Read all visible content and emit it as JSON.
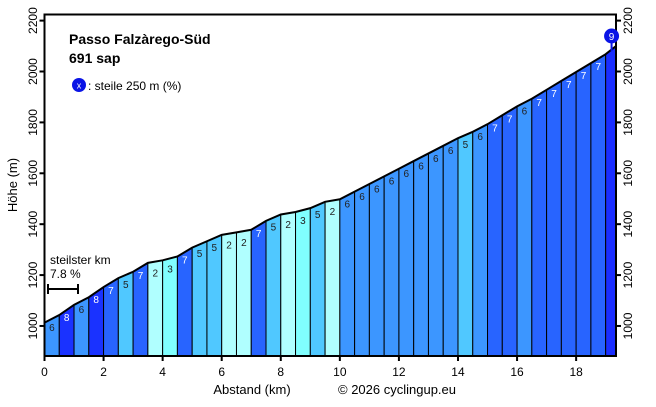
{
  "chart_data": {
    "type": "area",
    "title": "Passo Falzàrego-Süd",
    "subtitle": "691 sap",
    "xlabel": "Abstand (km)",
    "ylabel": "Höhe (m)",
    "credit": "© 2026 cyclingup.eu",
    "xlim": [
      0,
      19.35
    ],
    "ylim": [
      882,
      2224
    ],
    "x_ticks": [
      0,
      2,
      4,
      6,
      8,
      10,
      12,
      14,
      16,
      18
    ],
    "y_ticks": [
      1000,
      1200,
      1400,
      1600,
      1800,
      2000,
      2200
    ],
    "grid": false,
    "distances_km": [
      0,
      0.5,
      1,
      1.5,
      2,
      2.5,
      3,
      3.5,
      4,
      4.5,
      5,
      5.5,
      6,
      6.5,
      7,
      7.5,
      8,
      8.5,
      9,
      9.5,
      10,
      10.5,
      11,
      11.5,
      12,
      12.5,
      13,
      13.5,
      14,
      14.5,
      15,
      15.5,
      16,
      16.5,
      17,
      17.5,
      18,
      18.5,
      19,
      19.35
    ],
    "elevations_m": [
      1013,
      1043,
      1083,
      1113,
      1153,
      1188,
      1213,
      1248,
      1258,
      1273,
      1308,
      1333,
      1358,
      1368,
      1378,
      1413,
      1438,
      1448,
      1463,
      1488,
      1498,
      1528,
      1558,
      1588,
      1618,
      1648,
      1678,
      1708,
      1738,
      1763,
      1793,
      1828,
      1863,
      1893,
      1928,
      1963,
      1998,
      2033,
      2068,
      2100
    ],
    "segment_gradients_pct": [
      6,
      8,
      6,
      8,
      7,
      5,
      7,
      2,
      3,
      7,
      5,
      5,
      2,
      2,
      7,
      5,
      2,
      3,
      5,
      2,
      6,
      6,
      6,
      6,
      6,
      6,
      6,
      6,
      5,
      6,
      7,
      7,
      6,
      7,
      7,
      7,
      7,
      7,
      9
    ],
    "gradient_colors": {
      "2": "#b0ffff",
      "3": "#80ffff",
      "5": "#50c8ff",
      "6": "#3c96ff",
      "7": "#2864ff",
      "8": "#1a32ff",
      "9": "#1a2eff"
    },
    "steepest_250m": {
      "value": "9",
      "label": ": steile 250 m (%)",
      "marker_symbol": "x",
      "color": "#0a14e6"
    },
    "steepest_km": {
      "label": "steilster km",
      "value": "7.8 %"
    }
  }
}
